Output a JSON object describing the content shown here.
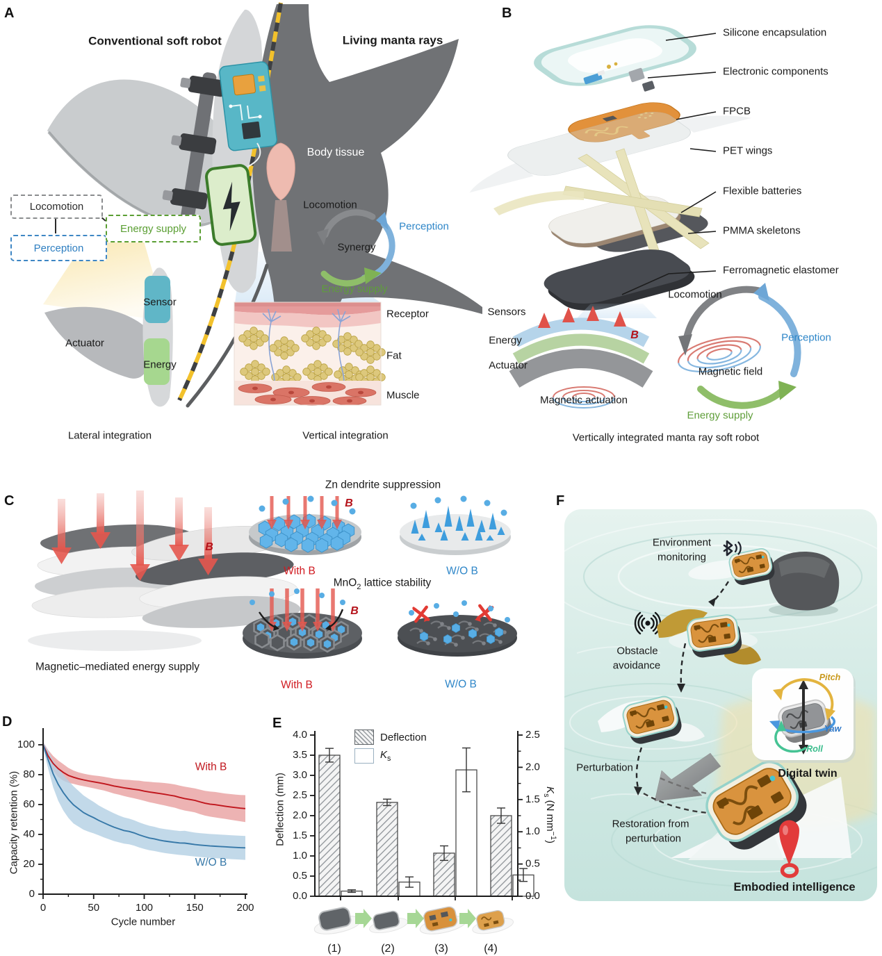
{
  "colors": {
    "accent_red": "#c0161d",
    "accent_blue": "#2e86c8",
    "accent_green": "#5f9e3a",
    "field_b_red": "#b5121a",
    "pitch_gold": "#c9991d",
    "yaw_blue": "#2f78c8",
    "roll_green": "#3bbd8d",
    "sensor_teal": "#57b6c6",
    "energy_green": "#8fd07e"
  },
  "panelA": {
    "label": "A",
    "title_left": "Conventional soft robot",
    "title_right": "Living manta rays",
    "body_tissue": "Body tissue",
    "box_locomotion": "Locomotion",
    "box_perception": "Perception",
    "box_energy_supply": "Energy supply",
    "actuator": "Actuator",
    "sensor": "Sensor",
    "energy": "Energy",
    "cycle_locomotion": "Locomotion",
    "cycle_synergy": "Synergy",
    "cycle_perception": "Perception",
    "cycle_energy_supply": "Energy supply",
    "tissue_receptor": "Receptor",
    "tissue_fat": "Fat",
    "tissue_muscle": "Muscle",
    "caption_left": "Lateral integration",
    "caption_right": "Vertical integration"
  },
  "panelB": {
    "label": "B",
    "layers": [
      "Silicone encapsulation",
      "Electronic components",
      "FPCB",
      "PET wings",
      "Flexible batteries",
      "PMMA skeletons",
      "Ferromagnetic elastomer"
    ],
    "stack_sensors": "Sensors",
    "stack_energy": "Energy",
    "stack_actuator": "Actuator",
    "b_symbol": "B",
    "magnetic_actuation": "Magnetic actuation",
    "cycle_locomotion": "Locomotion",
    "cycle_perception": "Perception",
    "cycle_magnetic_field": "Magnetic field",
    "cycle_energy_supply": "Energy supply",
    "caption": "Vertically integrated manta ray soft robot"
  },
  "panelC": {
    "label": "C",
    "b_left": "B",
    "caption_left": "Magnetic–mediated energy supply",
    "zn_title": "Zn dendrite suppression",
    "zn_b": "B",
    "zn_with": "With B",
    "zn_wo": "W/O B",
    "mno_prefix": "MnO",
    "mno_sub": "2",
    "mno_suffix": " lattice stability",
    "mno_b": "B",
    "mno_with": "With B",
    "mno_wo": "W/O B"
  },
  "panelD": {
    "label": "D"
  },
  "panelE": {
    "label": "E",
    "legend_deflection": "Deflection",
    "legend_ks_base": "K",
    "legend_ks_sub": "s",
    "right_label_mid": " (N mm",
    "right_label_sup": "−1",
    "right_label_end": ")"
  },
  "panelF": {
    "label": "F",
    "env_line1": "Environment",
    "env_line2": "monitoring",
    "obs_line1": "Obstacle",
    "obs_line2": "avoidance",
    "perturbation": "Perturbation",
    "rest_line1": "Restoration from",
    "rest_line2": "perturbation",
    "digital_twin": "Digital twin",
    "pitch": "Pitch",
    "yaw": "Yaw",
    "roll": "Roll",
    "embodied": "Embodied intelligence"
  },
  "chart_data": [
    {
      "type": "line",
      "title": "",
      "xlabel": "Cycle number",
      "ylabel": "Capacity retention (%)",
      "xlim": [
        0,
        200
      ],
      "ylim": [
        0,
        109
      ],
      "xticks": [
        0,
        50,
        100,
        150,
        200
      ],
      "yticks": [
        0,
        20,
        40,
        60,
        80,
        100
      ],
      "grid": false,
      "legend_position": "annotated-on-curve",
      "series": [
        {
          "name": "With B",
          "color": "#c0161d",
          "band_color": "#e8a0a0",
          "x": [
            0,
            5,
            10,
            15,
            20,
            25,
            30,
            35,
            40,
            45,
            50,
            55,
            60,
            65,
            70,
            75,
            80,
            85,
            90,
            95,
            100,
            105,
            110,
            115,
            120,
            125,
            130,
            135,
            140,
            145,
            150,
            155,
            160,
            165,
            170,
            175,
            180,
            185,
            190,
            195,
            200
          ],
          "y": [
            100,
            92.5,
            87.5,
            84,
            81.5,
            79.5,
            78.3,
            77.3,
            76.5,
            75.8,
            75.2,
            74.6,
            74,
            73.2,
            72.4,
            71.8,
            71.2,
            70.7,
            70.2,
            69.7,
            69,
            68.4,
            67.9,
            67.4,
            66.9,
            66.3,
            65.7,
            64.8,
            64,
            63.4,
            62.8,
            61.8,
            60.9,
            60.3,
            59.9,
            59.4,
            58.9,
            58.4,
            58,
            57.6,
            57.3
          ],
          "band": [
            2,
            4,
            5,
            5.5,
            5.5,
            5,
            4.5,
            4.3,
            4.2,
            4.2,
            4.3,
            4.5,
            4.6,
            4.8,
            5,
            5.2,
            5.5,
            5.8,
            6,
            6.3,
            6.5,
            6.8,
            7,
            7.3,
            7.5,
            7.7,
            7.8,
            7.9,
            8,
            8,
            8,
            8.2,
            8.3,
            8.4,
            8.5,
            8.5,
            8.5,
            8.6,
            8.7,
            8.8,
            9
          ],
          "label_pos": {
            "x": 166,
            "y": 83
          }
        },
        {
          "name": "W/O B",
          "color": "#3678a8",
          "band_color": "#b3cfe4",
          "x": [
            0,
            5,
            10,
            15,
            20,
            25,
            30,
            35,
            40,
            45,
            50,
            55,
            60,
            65,
            70,
            75,
            80,
            85,
            90,
            95,
            100,
            105,
            110,
            115,
            120,
            125,
            130,
            135,
            140,
            145,
            150,
            155,
            160,
            165,
            170,
            175,
            180,
            185,
            190,
            195,
            200
          ],
          "y": [
            100,
            90,
            80.5,
            73.5,
            68,
            63.5,
            59.8,
            57.2,
            54.6,
            52.8,
            51.2,
            49.4,
            47.8,
            46.3,
            44.9,
            43.7,
            42.6,
            42,
            41,
            39.7,
            38.6,
            37.6,
            37,
            36.2,
            35.6,
            35.1,
            34.7,
            34.3,
            34.2,
            33.7,
            33.2,
            32.9,
            32.6,
            32.3,
            32.1,
            31.9,
            31.7,
            31.5,
            31.3,
            31.1,
            31
          ],
          "band": [
            2,
            6,
            9,
            11,
            12,
            12.5,
            12.5,
            12,
            11.5,
            11,
            10.5,
            10,
            9.8,
            9.5,
            9.3,
            9,
            8.8,
            8.6,
            8.5,
            8.4,
            8.3,
            8.2,
            8.1,
            8,
            8,
            8,
            8,
            8,
            8.2,
            8.1,
            8,
            8,
            8,
            8,
            8,
            8,
            8,
            8,
            8,
            8,
            8
          ],
          "label_pos": {
            "x": 166,
            "y": 19
          }
        }
      ]
    },
    {
      "type": "bar",
      "title": "",
      "categories": [
        "(1)",
        "(2)",
        "(3)",
        "(4)"
      ],
      "axes": {
        "left": {
          "label": "Deflection (mm)",
          "lim": [
            0,
            4
          ],
          "ticks": [
            0,
            0.5,
            1,
            1.5,
            2,
            2.5,
            3,
            3.5,
            4
          ]
        },
        "right": {
          "label": "Ks (N mm−1)",
          "lim": [
            0,
            2.5
          ],
          "ticks": [
            0,
            0.5,
            1,
            1.5,
            2,
            2.5
          ]
        }
      },
      "series": [
        {
          "name": "Deflection",
          "axis": "left",
          "style": "hatched",
          "values": [
            3.5,
            2.33,
            1.07,
            2.0
          ],
          "errors": [
            0.17,
            0.08,
            0.18,
            0.19
          ]
        },
        {
          "name": "Ks",
          "axis": "right",
          "style": "open",
          "values": [
            0.08,
            0.22,
            1.96,
            0.33
          ],
          "errors": [
            0.02,
            0.08,
            0.34,
            0.1
          ]
        }
      ],
      "legend_position": "top-left-inside"
    }
  ]
}
